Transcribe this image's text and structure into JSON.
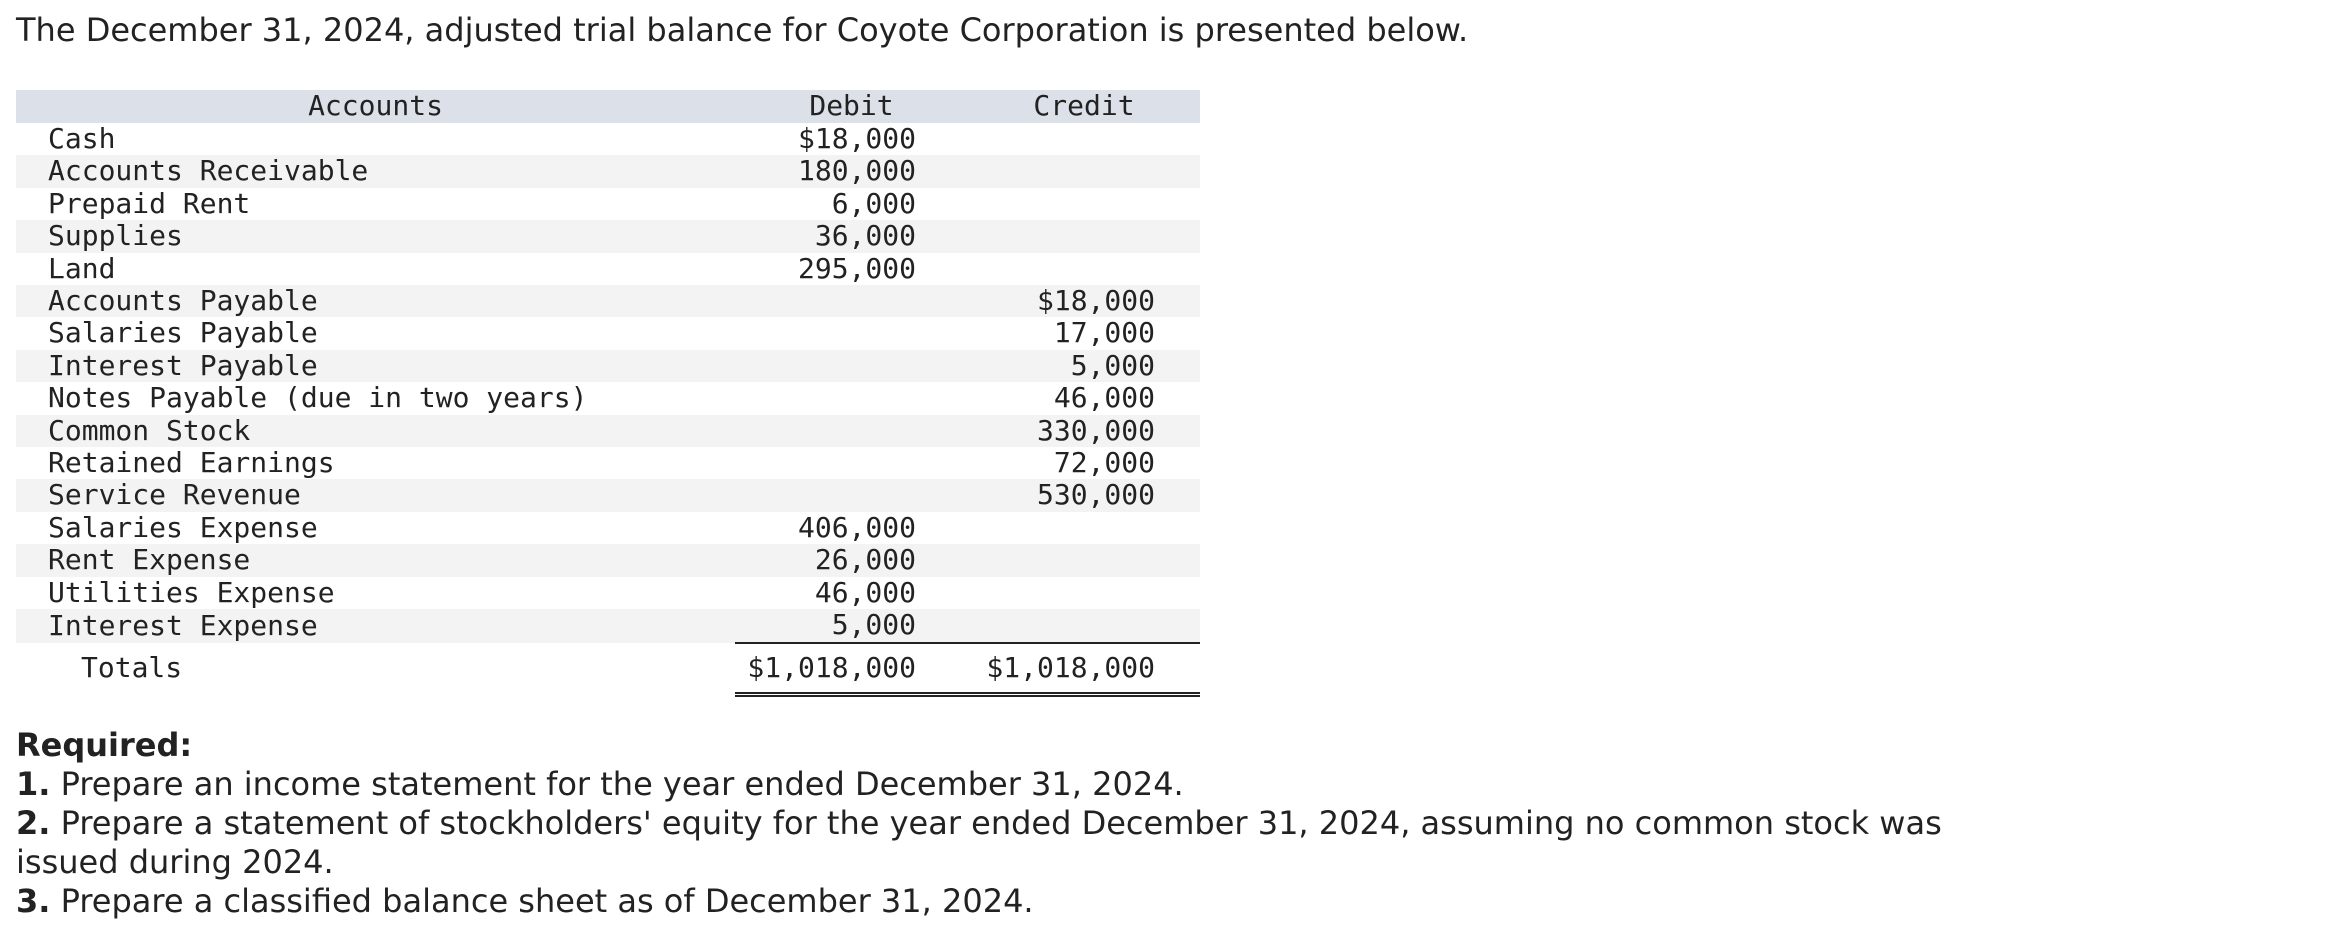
{
  "intro": "The December 31, 2024, adjusted trial balance for Coyote Corporation is presented below.",
  "table": {
    "headers": [
      "Accounts",
      "Debit",
      "Credit"
    ],
    "rows": [
      [
        "Cash",
        "$18,000",
        null
      ],
      [
        "Accounts Receivable",
        "180,000",
        null
      ],
      [
        "Prepaid Rent",
        "6,000",
        null
      ],
      [
        "Supplies",
        "36,000",
        null
      ],
      [
        "Land",
        "295,000",
        null
      ],
      [
        "Accounts Payable",
        null,
        "$18,000"
      ],
      [
        "Salaries Payable",
        null,
        "17,000"
      ],
      [
        "Interest Payable",
        null,
        "5,000"
      ],
      [
        "Notes Payable (due in two years)",
        null,
        "46,000"
      ],
      [
        "Common Stock",
        null,
        "330,000"
      ],
      [
        "Retained Earnings",
        null,
        "72,000"
      ],
      [
        "Service Revenue",
        null,
        "530,000"
      ],
      [
        "Salaries Expense",
        "406,000",
        null
      ],
      [
        "Rent Expense",
        "26,000",
        null
      ],
      [
        "Utilities Expense",
        "46,000",
        null
      ],
      [
        "Interest Expense",
        "5,000",
        null
      ]
    ],
    "totals": [
      "Totals",
      "$1,018,000",
      "$1,018,000"
    ]
  },
  "required": {
    "heading": "Required:",
    "items": [
      {
        "number": "1.",
        "text": "Prepare an income statement for the year ended December 31, 2024."
      },
      {
        "number": "2.",
        "text": "Prepare a statement of stockholders' equity for the year ended December 31, 2024, assuming no common stock was issued during 2024."
      },
      {
        "number": "3.",
        "text": "Prepare a classified balance sheet as of December 31, 2024."
      }
    ]
  }
}
